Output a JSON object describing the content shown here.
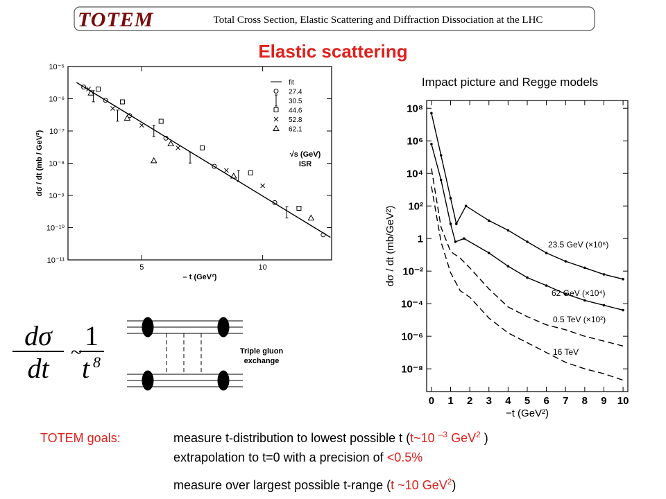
{
  "header": {
    "logo": "TOTEM",
    "subtitle": "Total Cross Section, Elastic Scattering and Diffraction Dissociation at the LHC"
  },
  "title": "Elastic scattering",
  "chart_data": [
    {
      "type": "scatter",
      "ylog": true,
      "xlabel": "– t (GeV²)",
      "ylabel": "dσ / dt  (mb / GeV²)",
      "xlim": [
        1.95,
        12.85
      ],
      "ylim": [
        1e-11,
        1e-05
      ],
      "xticks": [
        5,
        10
      ],
      "yticks": [
        {
          "value": 1e-05,
          "label": "10⁻⁵"
        },
        {
          "value": 1e-06,
          "label": "10⁻⁶"
        },
        {
          "value": 1e-07,
          "label": "10⁻⁷"
        },
        {
          "value": 1e-08,
          "label": "10⁻⁸"
        },
        {
          "value": 1e-09,
          "label": "10⁻⁹"
        },
        {
          "value": 1e-10,
          "label": "10⁻¹⁰"
        },
        {
          "value": 1e-11,
          "label": "10⁻¹¹"
        }
      ],
      "annotations": [
        "√s (GeV)",
        "ISR"
      ],
      "series": [
        {
          "name": "fit",
          "line": "solid",
          "color": "#000000",
          "x": [
            2.3,
            12.8
          ],
          "values": [
            3.2e-06,
            5e-11
          ]
        },
        {
          "name": "27.4",
          "marker": "circle",
          "color": "#000000",
          "x": [
            2.6,
            3.5,
            4.5,
            6,
            8,
            10.5,
            12.5
          ],
          "values": [
            2.3e-06,
            9e-07,
            3e-07,
            6e-08,
            8e-09,
            6e-10,
            6e-11
          ]
        },
        {
          "name": "30.5",
          "marker": "bar",
          "color": "#000000",
          "x": [
            3,
            4,
            5.5,
            7,
            9,
            11
          ],
          "values": [
            1.2e-06,
            3e-07,
            1e-07,
            1.5e-08,
            4e-09,
            3e-10
          ]
        },
        {
          "name": "44.6",
          "marker": "square",
          "color": "#000000",
          "x": [
            3.2,
            4.2,
            5.8,
            7.5,
            9.5,
            11.5
          ],
          "values": [
            2e-06,
            8e-07,
            2e-07,
            3e-08,
            5e-09,
            4e-10
          ]
        },
        {
          "name": "52.8",
          "marker": "x",
          "color": "#000000",
          "x": [
            2.8,
            3.8,
            5,
            6.5,
            8.5,
            10
          ],
          "values": [
            2e-06,
            5e-07,
            1.5e-07,
            3e-08,
            6e-09,
            2e-09
          ]
        },
        {
          "name": "62.1",
          "marker": "triangle",
          "color": "#000000",
          "x": [
            2.9,
            4.4,
            5.5,
            6.2,
            8.8,
            12
          ],
          "values": [
            1.5e-06,
            2.5e-07,
            1.2e-08,
            4e-08,
            4e-09,
            2e-10
          ]
        }
      ]
    },
    {
      "type": "line",
      "ylog": true,
      "title": "Impact picture and Regge models",
      "xlabel": "−t (GeV²)",
      "ylabel": "dσ / dt  (mb/GeV²)",
      "xlim": [
        -0.25,
        10.25
      ],
      "ylim": [
        4e-10,
        300000000.0
      ],
      "xticks": [
        0,
        1,
        2,
        3,
        4,
        5,
        6,
        7,
        8,
        9,
        10
      ],
      "yticks": [
        {
          "value": 100000000.0,
          "label": "10⁸"
        },
        {
          "value": 1000000.0,
          "label": "10⁶"
        },
        {
          "value": 10000.0,
          "label": "10⁴"
        },
        {
          "value": 100,
          "label": "10²"
        },
        1,
        {
          "value": 0.01,
          "label": "10⁻²"
        },
        {
          "value": 0.0001,
          "label": "10⁻⁴"
        },
        {
          "value": 1e-06,
          "label": "10⁻⁶"
        },
        {
          "value": 1e-08,
          "label": "10⁻⁸"
        }
      ],
      "series": [
        {
          "name": "23.5 GeV (×10⁶)",
          "line": "solid",
          "markers": true,
          "color": "#000000",
          "x": [
            0,
            0.5,
            1,
            1.3,
            1.8,
            3,
            4,
            5,
            6,
            7,
            8,
            9,
            10
          ],
          "values": [
            50000000.0,
            130000.0,
            300,
            8,
            100,
            12.6,
            3.2,
            0.63,
            0.13,
            0.04,
            0.016,
            0.0063,
            0.0032
          ]
        },
        {
          "name": "62 GeV (×10⁴)",
          "line": "solid",
          "markers": true,
          "color": "#000000",
          "x": [
            0,
            0.5,
            1,
            1.25,
            1.7,
            3,
            4,
            5,
            6,
            7,
            8,
            9,
            10
          ],
          "values": [
            630000.0,
            4000,
            8,
            0.63,
            1,
            0.13,
            0.02,
            0.004,
            0.0013,
            0.0004,
            0.00016,
            8e-05,
            4e-05
          ]
        },
        {
          "name": "0.5 TeV (×10²)",
          "line": "dashed",
          "color": "#000000",
          "x": [
            0,
            0.5,
            1,
            1.5,
            2,
            3,
            4,
            5,
            6,
            7,
            8,
            9,
            10
          ],
          "values": [
            20000.0,
            5,
            0.16,
            0.063,
            0.016,
            0.0008,
            6.3e-05,
            1.6e-05,
            5e-06,
            2.5e-06,
            1e-06,
            5e-07,
            2.5e-07
          ]
        },
        {
          "name": "16 TeV",
          "line": "dashed",
          "color": "#000000",
          "x": [
            0,
            0.5,
            1,
            1.5,
            2,
            3,
            4,
            5,
            6,
            7,
            8,
            9,
            10
          ],
          "values": [
            1600,
            0.63,
            0.008,
            0.00063,
            0.00025,
            1.3e-05,
            1.6e-06,
            4e-07,
            1e-07,
            2.5e-08,
            1e-08,
            5e-09,
            2e-09
          ]
        }
      ]
    }
  ],
  "formula": {
    "numerator": "dσ",
    "denominator": "dt",
    "relation": "~",
    "rhs_numerator": "1",
    "rhs_base": "t",
    "rhs_exponent": "8"
  },
  "diagram": {
    "label": [
      "Triple gluon",
      "exchange"
    ]
  },
  "goals": {
    "label": "TOTEM goals:",
    "lines": [
      [
        "measure t-distribution to lowest possible t (",
        "t~10 ",
        "–3",
        " GeV",
        "2",
        " )"
      ],
      [
        "extrapolation to t=0 with a precision of ",
        "<0.5%"
      ],
      [
        "measure over largest possible t-range (",
        "t ~10 GeV",
        "2",
        ")"
      ]
    ]
  }
}
